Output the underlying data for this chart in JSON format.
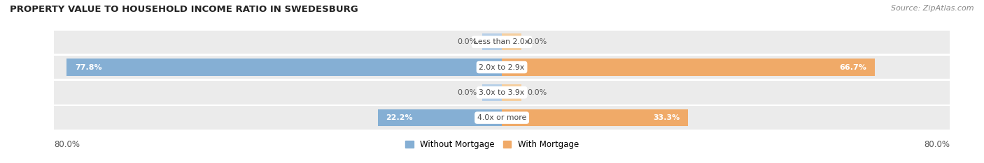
{
  "title": "PROPERTY VALUE TO HOUSEHOLD INCOME RATIO IN SWEDESBURG",
  "source": "Source: ZipAtlas.com",
  "categories": [
    "Less than 2.0x",
    "2.0x to 2.9x",
    "3.0x to 3.9x",
    "4.0x or more"
  ],
  "without_mortgage": [
    0.0,
    77.8,
    0.0,
    22.2
  ],
  "with_mortgage": [
    0.0,
    66.7,
    0.0,
    33.3
  ],
  "color_without": "#85afd4",
  "color_with": "#f0aa68",
  "color_without_light": "#b8d0e8",
  "color_with_light": "#f5cfa0",
  "row_bg": "#ebebeb",
  "stub_size": 3.5,
  "x_min": -80.0,
  "x_max": 80.0,
  "figsize": [
    14.06,
    2.34
  ],
  "dpi": 100
}
